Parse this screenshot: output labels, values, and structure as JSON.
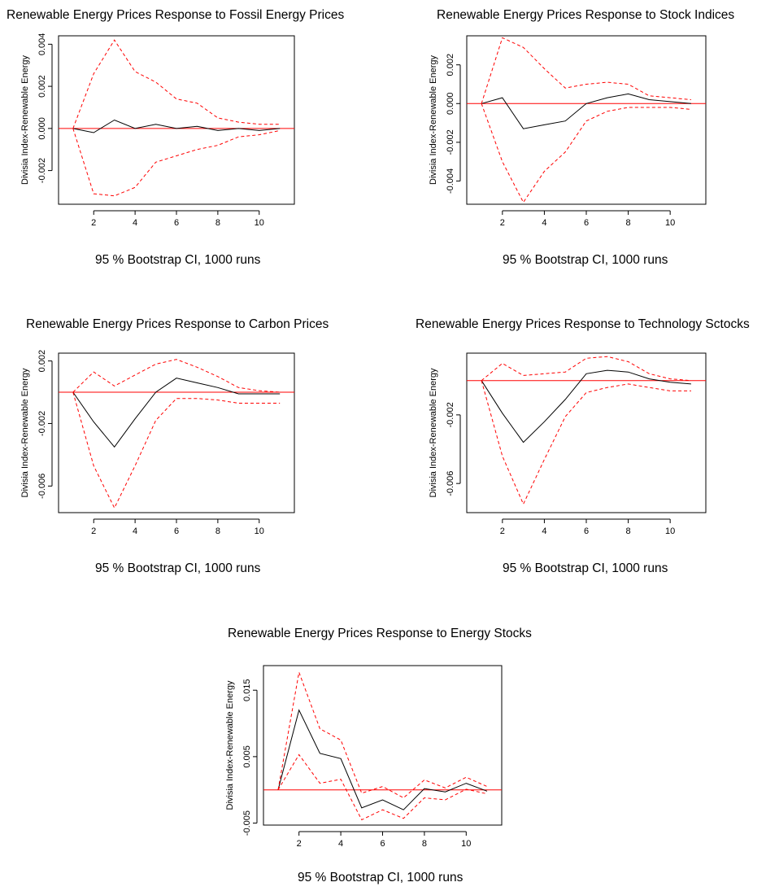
{
  "page": {
    "background": "#ffffff",
    "colors": {
      "response": "#000000",
      "bootstrap_ci": "#ff0000",
      "zero_line": "#ff0000"
    }
  },
  "chart_data": [
    {
      "type": "line",
      "title": "Renewable Energy Prices Response to Fossil Energy Prices",
      "ylabel": "Divisia Index-Renewable Energy",
      "caption": "95 % Bootstrap CI,  1000 runs",
      "x": [
        1,
        2,
        3,
        4,
        5,
        6,
        7,
        8,
        9,
        10,
        11
      ],
      "xlim": [
        0.3,
        11.7
      ],
      "ylim": [
        -0.0036,
        0.0044
      ],
      "xticks": [
        2,
        4,
        6,
        8,
        10
      ],
      "xtick_labels": [
        "2",
        "4",
        "6",
        "8",
        "10"
      ],
      "yticks": [
        -0.002,
        0.0,
        0.002,
        0.004
      ],
      "ytick_labels": [
        "-0.002",
        "0.000",
        "0.002",
        "0.004"
      ],
      "hline": 0,
      "series": [
        {
          "role": "response",
          "values": [
            0.0,
            -0.0002,
            0.0004,
            0.0,
            0.0002,
            0.0,
            0.0001,
            -0.0001,
            0.0,
            -0.0001,
            0.0
          ]
        },
        {
          "role": "upper",
          "values": [
            0.0,
            0.0026,
            0.0042,
            0.0027,
            0.0022,
            0.0014,
            0.0012,
            0.0005,
            0.0003,
            0.0002,
            0.0002
          ]
        },
        {
          "role": "lower",
          "values": [
            0.0,
            -0.0031,
            -0.0032,
            -0.0028,
            -0.0016,
            -0.0013,
            -0.001,
            -0.0008,
            -0.0004,
            -0.0003,
            -0.0001
          ]
        }
      ]
    },
    {
      "type": "line",
      "title": "Renewable Energy Prices Response to Stock Indices",
      "ylabel": "Divisia Index-Renewable Energy",
      "caption": "95 % Bootstrap CI,  1000 runs",
      "x": [
        1,
        2,
        3,
        4,
        5,
        6,
        7,
        8,
        9,
        10,
        11
      ],
      "xlim": [
        0.3,
        11.7
      ],
      "ylim": [
        -0.0052,
        0.0035
      ],
      "xticks": [
        2,
        4,
        6,
        8,
        10
      ],
      "xtick_labels": [
        "2",
        "4",
        "6",
        "8",
        "10"
      ],
      "yticks": [
        -0.004,
        -0.002,
        0.0,
        0.002
      ],
      "ytick_labels": [
        "-0.004",
        "-0.002",
        "0.000",
        "0.002"
      ],
      "hline": 0,
      "series": [
        {
          "role": "response",
          "values": [
            0.0,
            0.0003,
            -0.0013,
            -0.0011,
            -0.0009,
            0.0,
            0.0003,
            0.0005,
            0.0002,
            0.0001,
            0.0
          ]
        },
        {
          "role": "upper",
          "values": [
            0.0,
            0.0034,
            0.0029,
            0.0018,
            0.0008,
            0.001,
            0.0011,
            0.001,
            0.0004,
            0.0003,
            0.0002
          ]
        },
        {
          "role": "lower",
          "values": [
            0.0,
            -0.003,
            -0.0051,
            -0.0035,
            -0.0025,
            -0.0009,
            -0.0004,
            -0.0002,
            -0.0002,
            -0.0002,
            -0.0003
          ]
        }
      ]
    },
    {
      "type": "line",
      "title": "Renewable Energy Prices Response to Carbon Prices",
      "ylabel": "Divisia Index-Renewable Energy",
      "caption": "95 % Bootstrap CI,  1000 runs",
      "x": [
        1,
        2,
        3,
        4,
        5,
        6,
        7,
        8,
        9,
        10,
        11
      ],
      "xlim": [
        0.3,
        11.7
      ],
      "ylim": [
        -0.0077,
        0.0025
      ],
      "xticks": [
        2,
        4,
        6,
        8,
        10
      ],
      "xtick_labels": [
        "2",
        "4",
        "6",
        "8",
        "10"
      ],
      "yticks": [
        -0.006,
        -0.002,
        0.002
      ],
      "ytick_labels": [
        "-0.006",
        "-0.002",
        "0.002"
      ],
      "hline": 0,
      "series": [
        {
          "role": "response",
          "values": [
            0.0,
            -0.0019,
            -0.0035,
            -0.0017,
            0.0,
            0.0009,
            0.0006,
            0.0003,
            -0.0001,
            -0.0001,
            -0.0001
          ]
        },
        {
          "role": "upper",
          "values": [
            0.0,
            0.0013,
            0.0004,
            0.0011,
            0.0018,
            0.0021,
            0.0016,
            0.001,
            0.0003,
            0.0001,
            0.0
          ]
        },
        {
          "role": "lower",
          "values": [
            0.0,
            -0.0047,
            -0.0074,
            -0.0047,
            -0.0018,
            -0.0004,
            -0.0004,
            -0.0005,
            -0.0007,
            -0.0007,
            -0.0007
          ]
        }
      ]
    },
    {
      "type": "line",
      "title": "Renewable Energy Prices Response to Technology Sctocks",
      "ylabel": "Divisia Index-Renewable Energy",
      "caption": "95 % Bootstrap CI,  1000 runs",
      "x": [
        1,
        2,
        3,
        4,
        5,
        6,
        7,
        8,
        9,
        10,
        11
      ],
      "xlim": [
        0.3,
        11.7
      ],
      "ylim": [
        -0.0077,
        0.0016
      ],
      "xticks": [
        2,
        4,
        6,
        8,
        10
      ],
      "xtick_labels": [
        "2",
        "4",
        "6",
        "8",
        "10"
      ],
      "yticks": [
        -0.006,
        -0.002
      ],
      "ytick_labels": [
        "-0.006",
        "-0.002"
      ],
      "hline": 0,
      "series": [
        {
          "role": "response",
          "values": [
            0.0,
            -0.0019,
            -0.0036,
            -0.0024,
            -0.0011,
            0.0004,
            0.0006,
            0.0005,
            0.0001,
            -0.0001,
            -0.0002
          ]
        },
        {
          "role": "upper",
          "values": [
            0.0,
            0.001,
            0.0003,
            0.0004,
            0.0005,
            0.0013,
            0.0014,
            0.0011,
            0.0004,
            0.0001,
            0.0
          ]
        },
        {
          "role": "lower",
          "values": [
            0.0,
            -0.0044,
            -0.0072,
            -0.0046,
            -0.0021,
            -0.0007,
            -0.0004,
            -0.0002,
            -0.0004,
            -0.0006,
            -0.0006
          ]
        }
      ]
    },
    {
      "type": "line",
      "title": "Renewable Energy Prices Response to Energy Stocks",
      "ylabel": "Divisia Index-Renewable Energy",
      "caption": "95 % Bootstrap CI,  1000 runs",
      "x": [
        1,
        2,
        3,
        4,
        5,
        6,
        7,
        8,
        9,
        10,
        11
      ],
      "xlim": [
        0.3,
        11.7
      ],
      "ylim": [
        -0.0053,
        0.0187
      ],
      "xticks": [
        2,
        4,
        6,
        8,
        10
      ],
      "xtick_labels": [
        "2",
        "4",
        "6",
        "8",
        "10"
      ],
      "yticks": [
        -0.005,
        0.005,
        0.015
      ],
      "ytick_labels": [
        "-0.005",
        "0.005",
        "0.015"
      ],
      "hline": 0,
      "series": [
        {
          "role": "response",
          "values": [
            0.0,
            0.012,
            0.0055,
            0.0047,
            -0.0027,
            -0.0015,
            -0.003,
            0.0002,
            -0.0003,
            0.001,
            -0.0002
          ]
        },
        {
          "role": "upper",
          "values": [
            0.0,
            0.0177,
            0.0092,
            0.0075,
            -0.0005,
            0.0005,
            -0.0012,
            0.0015,
            0.0003,
            0.0019,
            0.0005
          ]
        },
        {
          "role": "lower",
          "values": [
            0.0,
            0.0053,
            0.001,
            0.0016,
            -0.0045,
            -0.003,
            -0.0043,
            -0.0012,
            -0.0015,
            0.0001,
            -0.0006
          ]
        }
      ]
    }
  ]
}
